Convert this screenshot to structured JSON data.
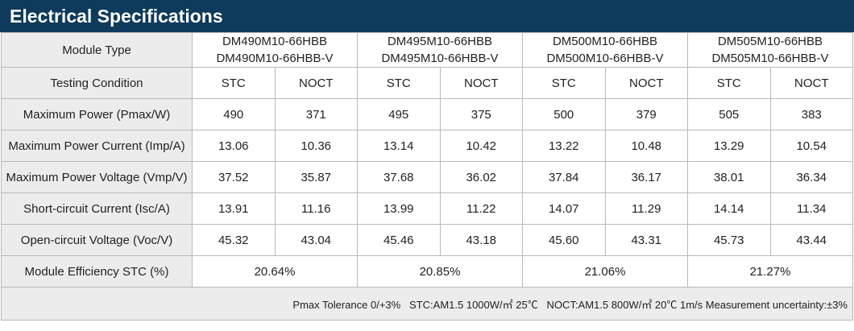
{
  "header": {
    "title": "Electrical Specifications"
  },
  "table": {
    "module_type_label": "Module Type",
    "models": [
      [
        "DM490M10-66HBB",
        "DM490M10-66HBB-V"
      ],
      [
        "DM495M10-66HBB",
        "DM495M10-66HBB-V"
      ],
      [
        "DM500M10-66HBB",
        "DM500M10-66HBB-V"
      ],
      [
        "DM505M10-66HBB",
        "DM505M10-66HBB-V"
      ]
    ],
    "testing_condition_label": "Testing Condition",
    "conditions": [
      "STC",
      "NOCT",
      "STC",
      "NOCT",
      "STC",
      "NOCT",
      "STC",
      "NOCT"
    ],
    "rows": [
      {
        "label": "Maximum Power (Pmax/W)",
        "values": [
          "490",
          "371",
          "495",
          "375",
          "500",
          "379",
          "505",
          "383"
        ]
      },
      {
        "label": "Maximum Power Current (Imp/A)",
        "values": [
          "13.06",
          "10.36",
          "13.14",
          "10.42",
          "13.22",
          "10.48",
          "13.29",
          "10.54"
        ]
      },
      {
        "label": "Maximum Power Voltage (Vmp/V)",
        "values": [
          "37.52",
          "35.87",
          "37.68",
          "36.02",
          "37.84",
          "36.17",
          "38.01",
          "36.34"
        ]
      },
      {
        "label": "Short-circuit Current (Isc/A)",
        "values": [
          "13.91",
          "11.16",
          "13.99",
          "11.22",
          "14.07",
          "11.29",
          "14.14",
          "11.34"
        ]
      },
      {
        "label": "Open-circuit Voltage (Voc/V)",
        "values": [
          "45.32",
          "43.04",
          "45.46",
          "43.18",
          "45.60",
          "43.31",
          "45.73",
          "43.44"
        ]
      }
    ],
    "efficiency": {
      "label": "Module Efficiency STC (%)",
      "values": [
        "20.64%",
        "20.85%",
        "21.06%",
        "21.27%"
      ]
    }
  },
  "footer": {
    "note": "Pmax Tolerance 0/+3%   STC:AM1.5 1000W/㎡ 25℃   NOCT:AM1.5 800W/㎡ 20℃ 1m/s Measurement uncertainty:±3%"
  }
}
